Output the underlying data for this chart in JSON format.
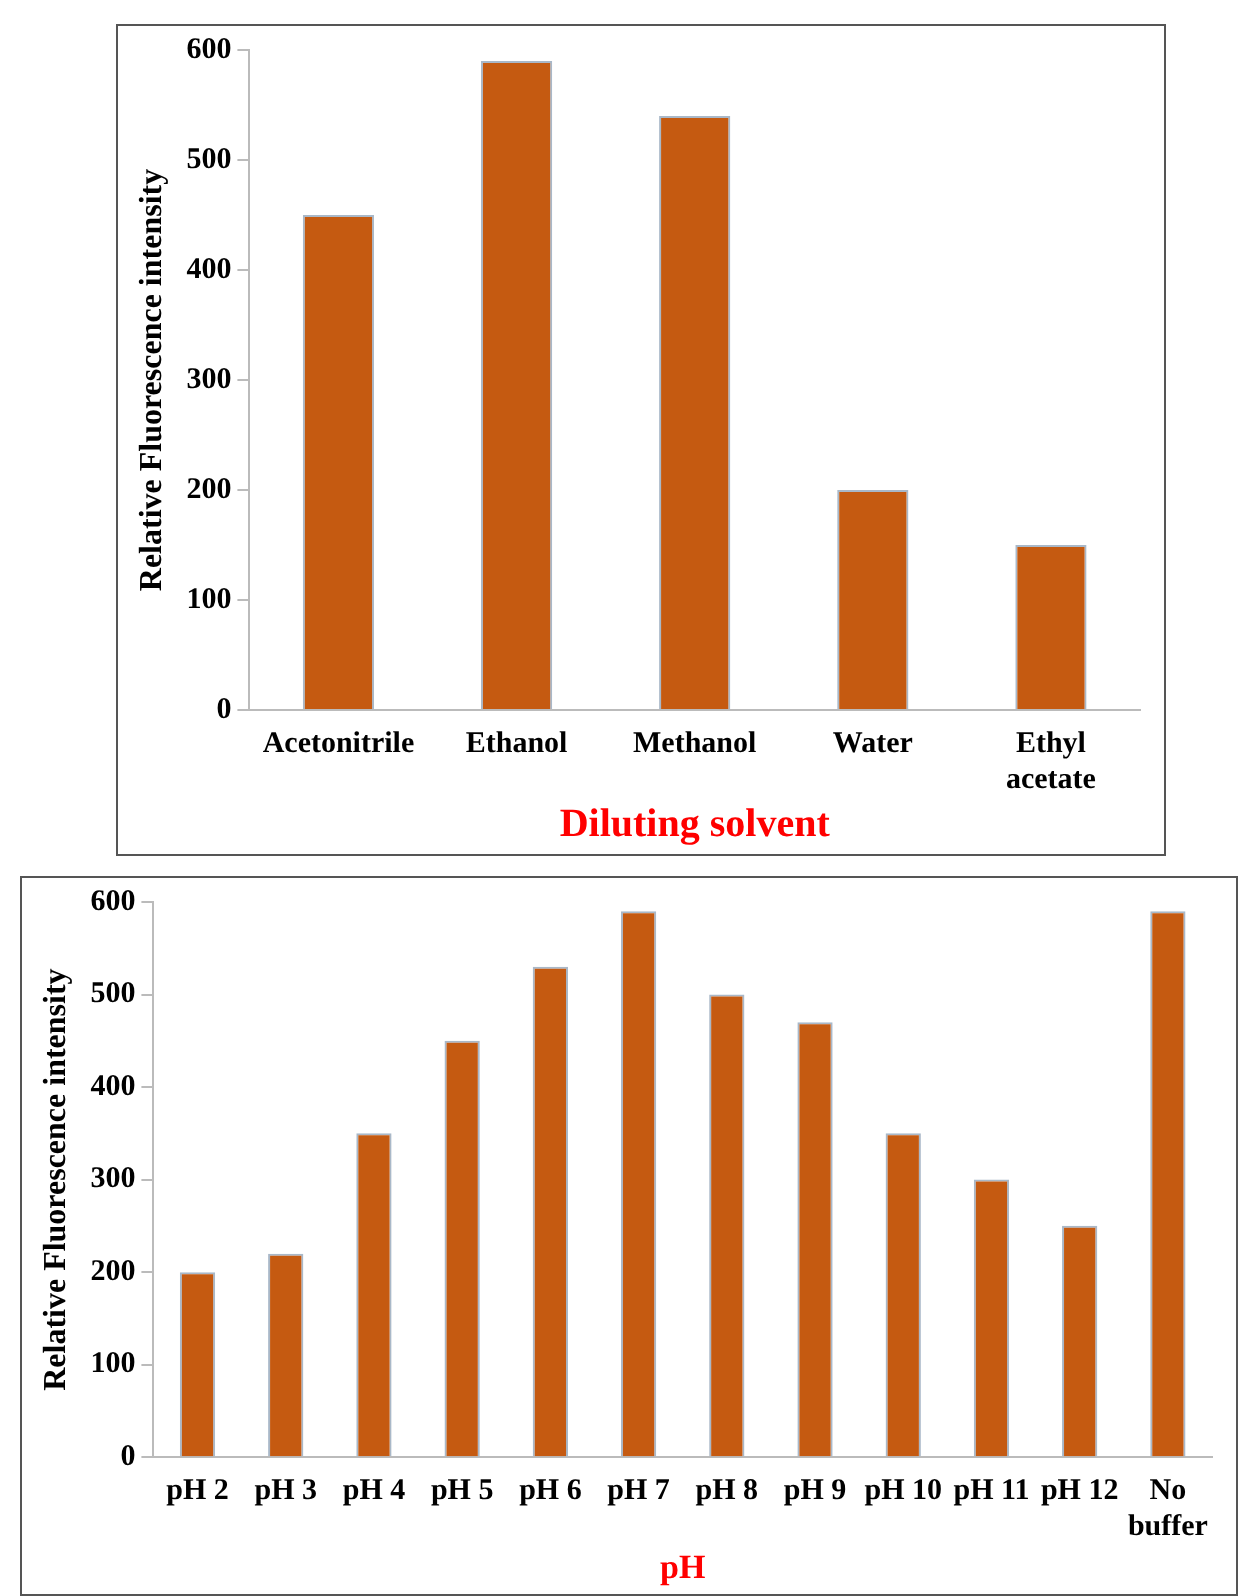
{
  "chart_data": [
    {
      "type": "bar",
      "xlabel": "Diluting solvent",
      "ylabel": "Relative Fluorescence intensity",
      "categories": [
        "Acetonitrile",
        "Ethanol",
        "Methanol",
        "Water",
        "Ethyl acetate"
      ],
      "values": [
        450,
        590,
        540,
        200,
        150
      ],
      "color": "#c55a11",
      "ylim": [
        0,
        600
      ],
      "yticks": [
        0,
        100,
        200,
        300,
        400,
        500,
        600
      ],
      "grid": false,
      "legend": false
    },
    {
      "type": "bar",
      "xlabel": "pH",
      "ylabel": "Relative Fluorescence intensity",
      "categories": [
        "pH 2",
        "pH 3",
        "pH 4",
        "pH 5",
        "pH 6",
        "pH 7",
        "pH 8",
        "pH 9",
        "pH 10",
        "pH 11",
        "pH 12",
        "No buffer"
      ],
      "values": [
        200,
        220,
        350,
        450,
        530,
        590,
        500,
        470,
        350,
        300,
        250,
        590
      ],
      "color": "#c55a11",
      "ylim": [
        0,
        600
      ],
      "yticks": [
        0,
        100,
        200,
        300,
        400,
        500,
        600
      ],
      "grid": false,
      "legend": false
    }
  ]
}
